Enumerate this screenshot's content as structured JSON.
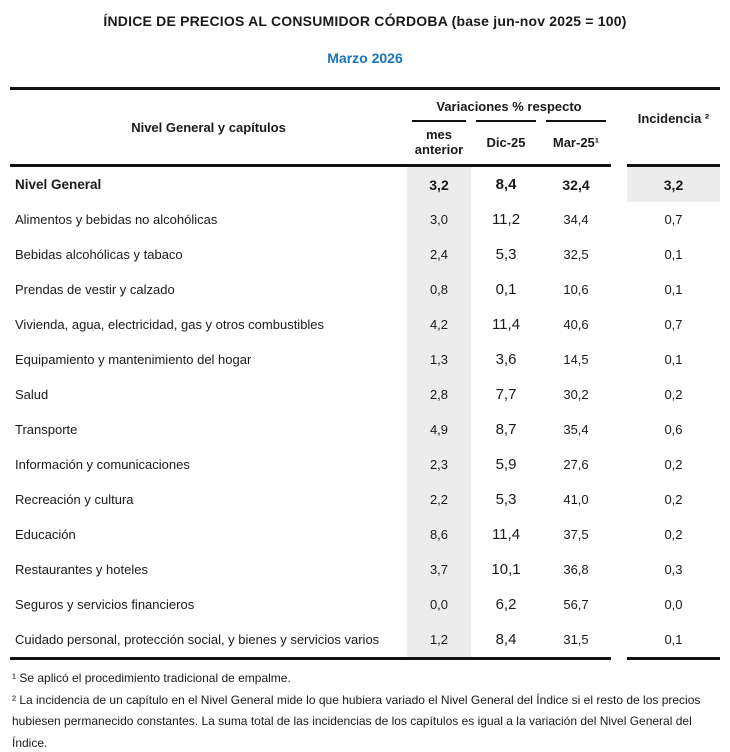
{
  "title": "ÍNDICE DE PRECIOS AL CONSUMIDOR CÓRDOBA (base jun-nov 2025 = 100)",
  "subtitle": "Marzo 2026",
  "table": {
    "header": {
      "label_column": "Nivel General y capítulos",
      "group_label": "Variaciones % respecto",
      "sub_columns": [
        "mes anterior",
        "Dic-25",
        "Mar-25¹"
      ],
      "incidencia_column": "Incidencia ²"
    },
    "rows": [
      {
        "label": "Nivel General",
        "mes_anterior": "3,2",
        "dic_25": "8,4",
        "mar_25": "32,4",
        "incidencia": "3,2",
        "emphasis": true
      },
      {
        "label": "Alimentos y bebidas no alcohólicas",
        "mes_anterior": "3,0",
        "dic_25": "11,2",
        "mar_25": "34,4",
        "incidencia": "0,7",
        "emphasis": false
      },
      {
        "label": "Bebidas alcohólicas y tabaco",
        "mes_anterior": "2,4",
        "dic_25": "5,3",
        "mar_25": "32,5",
        "incidencia": "0,1",
        "emphasis": false
      },
      {
        "label": "Prendas de vestir y calzado",
        "mes_anterior": "0,8",
        "dic_25": "0,1",
        "mar_25": "10,6",
        "incidencia": "0,1",
        "emphasis": false
      },
      {
        "label": "Vivienda, agua, electricidad, gas y otros combustibles",
        "mes_anterior": "4,2",
        "dic_25": "11,4",
        "mar_25": "40,6",
        "incidencia": "0,7",
        "emphasis": false
      },
      {
        "label": "Equipamiento y mantenimiento del hogar",
        "mes_anterior": "1,3",
        "dic_25": "3,6",
        "mar_25": "14,5",
        "incidencia": "0,1",
        "emphasis": false
      },
      {
        "label": "Salud",
        "mes_anterior": "2,8",
        "dic_25": "7,7",
        "mar_25": "30,2",
        "incidencia": "0,2",
        "emphasis": false
      },
      {
        "label": "Transporte",
        "mes_anterior": "4,9",
        "dic_25": "8,7",
        "mar_25": "35,4",
        "incidencia": "0,6",
        "emphasis": false
      },
      {
        "label": "Información y comunicaciones",
        "mes_anterior": "2,3",
        "dic_25": "5,9",
        "mar_25": "27,6",
        "incidencia": "0,2",
        "emphasis": false
      },
      {
        "label": "Recreación y cultura",
        "mes_anterior": "2,2",
        "dic_25": "5,3",
        "mar_25": "41,0",
        "incidencia": "0,2",
        "emphasis": false
      },
      {
        "label": "Educación",
        "mes_anterior": "8,6",
        "dic_25": "11,4",
        "mar_25": "37,5",
        "incidencia": "0,2",
        "emphasis": false
      },
      {
        "label": "Restaurantes y hoteles",
        "mes_anterior": "3,7",
        "dic_25": "10,1",
        "mar_25": "36,8",
        "incidencia": "0,3",
        "emphasis": false
      },
      {
        "label": "Seguros y servicios financieros",
        "mes_anterior": "0,0",
        "dic_25": "6,2",
        "mar_25": "56,7",
        "incidencia": "0,0",
        "emphasis": false
      },
      {
        "label": "Cuidado personal, protección social, y bienes y servicios varios",
        "mes_anterior": "1,2",
        "dic_25": "8,4",
        "mar_25": "31,5",
        "incidencia": "0,1",
        "emphasis": false
      }
    ]
  },
  "footnotes": [
    "¹ Se aplicó el procedimiento tradicional de empalme.",
    "² La incidencia de un capítulo en el Nivel General mide lo que hubiera variado el Nivel General del Índice si el resto de los precios hubiesen permanecido constantes. La suma total de las incidencias de los capítulos es igual a la variación del Nivel General del Índice."
  ],
  "colors": {
    "accent_blue": "#1B75BC",
    "shade_gray": "#ECECEC",
    "text": "#1A1A1A",
    "rule_black": "#111111"
  }
}
